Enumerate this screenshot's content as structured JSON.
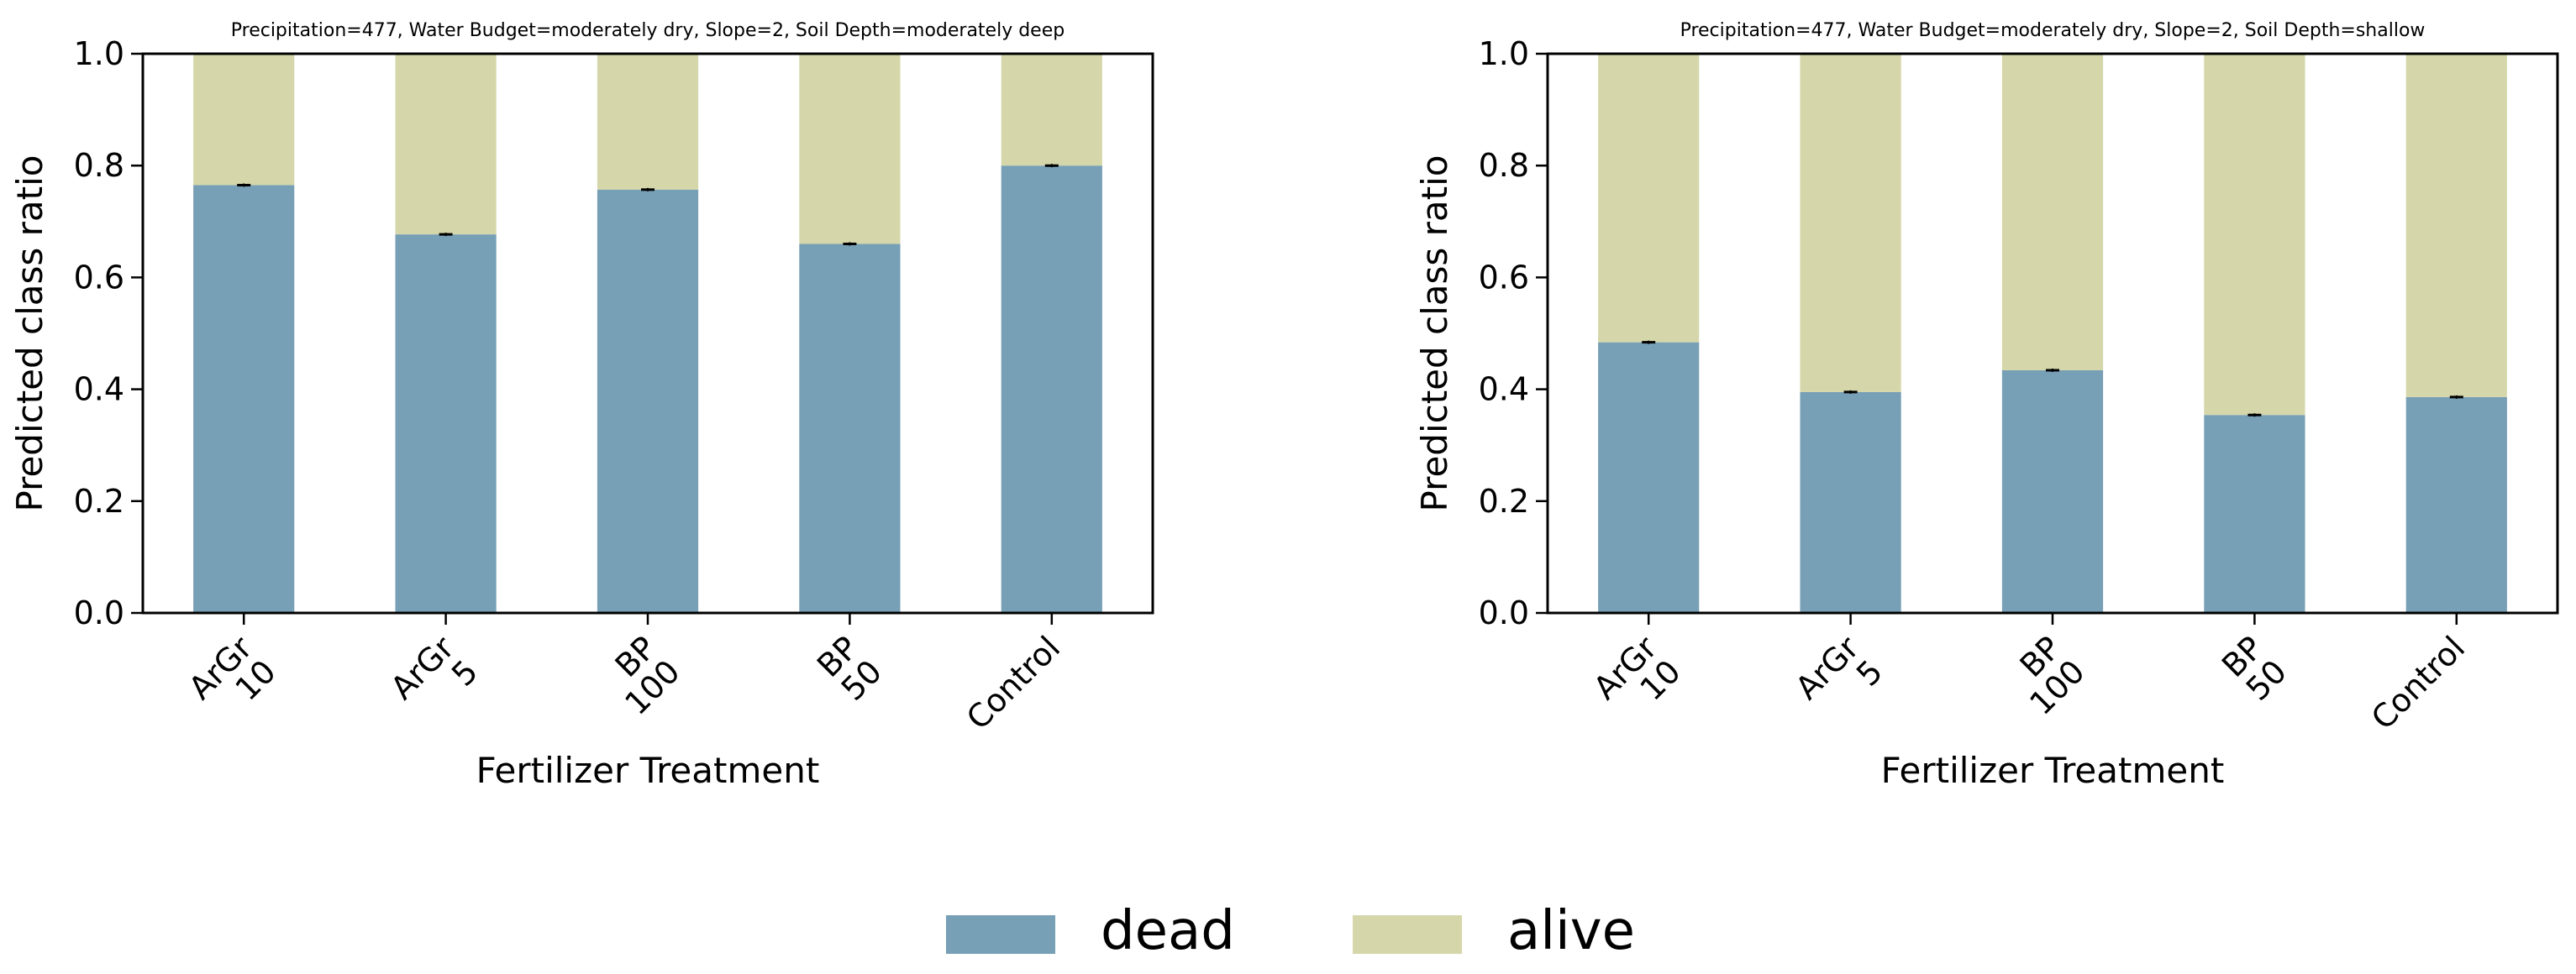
{
  "chart_data": [
    {
      "type": "bar",
      "stacked": true,
      "title": "Precipitation=477, Water Budget=moderately dry, Slope=2, Soil Depth=moderately deep",
      "xlabel": "Fertilizer Treatment",
      "ylabel": "Predicted class ratio",
      "ylim": [
        0,
        1
      ],
      "yticks": [
        "0.0",
        "0.2",
        "0.4",
        "0.6",
        "0.8",
        "1.0"
      ],
      "categories": [
        [
          "ArGr",
          "10"
        ],
        [
          "ArGr",
          "5"
        ],
        [
          "BP",
          "100"
        ],
        [
          "BP",
          "50"
        ],
        [
          "Control"
        ]
      ],
      "series": [
        {
          "name": "dead",
          "values": [
            0.765,
            0.677,
            0.757,
            0.66,
            0.8
          ]
        },
        {
          "name": "alive",
          "values": [
            0.235,
            0.323,
            0.243,
            0.34,
            0.2
          ]
        }
      ],
      "error_bars": [
        0.765,
        0.677,
        0.757,
        0.66,
        0.8
      ]
    },
    {
      "type": "bar",
      "stacked": true,
      "title": "Precipitation=477, Water Budget=moderately dry, Slope=2, Soil Depth=shallow",
      "xlabel": "Fertilizer Treatment",
      "ylabel": "Predicted class ratio",
      "ylim": [
        0,
        1
      ],
      "yticks": [
        "0.0",
        "0.2",
        "0.4",
        "0.6",
        "0.8",
        "1.0"
      ],
      "categories": [
        [
          "ArGr",
          "10"
        ],
        [
          "ArGr",
          "5"
        ],
        [
          "BP",
          "100"
        ],
        [
          "BP",
          "50"
        ],
        [
          "Control"
        ]
      ],
      "series": [
        {
          "name": "dead",
          "values": [
            0.484,
            0.395,
            0.434,
            0.354,
            0.386
          ]
        },
        {
          "name": "alive",
          "values": [
            0.516,
            0.605,
            0.566,
            0.646,
            0.614
          ]
        }
      ],
      "error_bars": [
        0.484,
        0.395,
        0.434,
        0.354,
        0.386
      ]
    }
  ],
  "legend": [
    {
      "label": "dead",
      "color": "#779fb6"
    },
    {
      "label": "alive",
      "color": "#d5d7aa"
    }
  ]
}
